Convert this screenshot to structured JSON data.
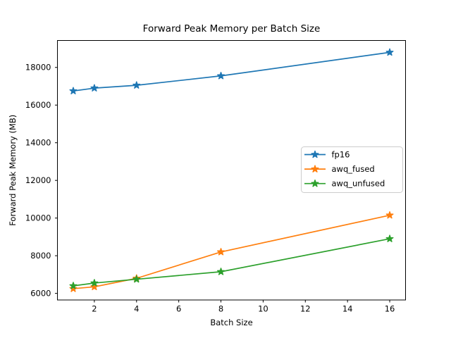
{
  "figure": {
    "background": "#ffffff",
    "axis_color": "#000000",
    "text_color": "#000000",
    "legend_border_color": "#cccccc"
  },
  "chart_data": {
    "type": "line",
    "title": "Forward Peak Memory per Batch Size",
    "xlabel": "Batch Size",
    "ylabel": "Forward Peak Memory (MB)",
    "x": [
      1,
      2,
      4,
      8,
      16
    ],
    "series": [
      {
        "name": "fp16",
        "color": "#1f77b4",
        "marker": "star",
        "values": [
          16750,
          16900,
          17050,
          17550,
          18800
        ]
      },
      {
        "name": "awq_fused",
        "color": "#ff7f0e",
        "marker": "star",
        "values": [
          6250,
          6350,
          6800,
          8200,
          10150
        ]
      },
      {
        "name": "awq_unfused",
        "color": "#2ca02c",
        "marker": "star",
        "values": [
          6400,
          6550,
          6750,
          7150,
          8900
        ]
      }
    ],
    "xticks": [
      2,
      4,
      6,
      8,
      10,
      12,
      14,
      16
    ],
    "yticks": [
      6000,
      8000,
      10000,
      12000,
      14000,
      16000,
      18000
    ],
    "xlim": [
      0.25,
      16.75
    ],
    "ylim": [
      5650,
      19430
    ],
    "grid": false,
    "legend": {
      "position": "center-right",
      "entries": [
        "fp16",
        "awq_fused",
        "awq_unfused"
      ]
    }
  }
}
